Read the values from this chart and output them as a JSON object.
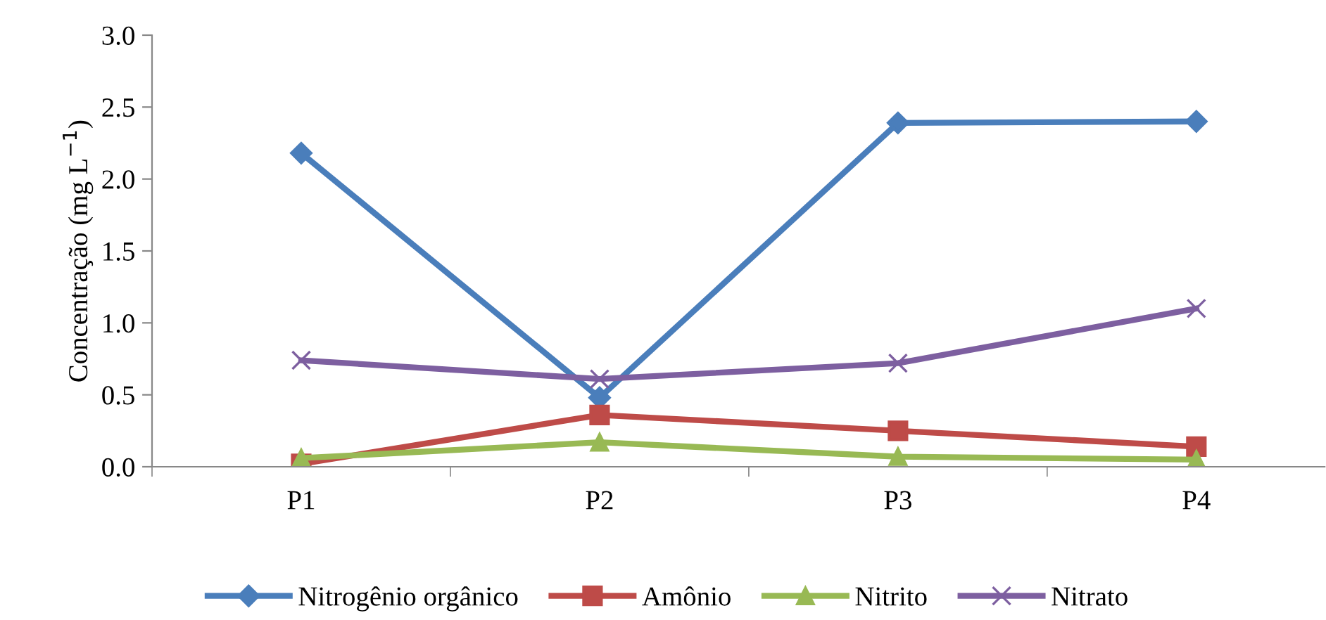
{
  "chart_data": {
    "type": "line",
    "ylabel": "Concentração (mg L$^{−1}$)",
    "categories": [
      "P1",
      "P2",
      "P3",
      "P4"
    ],
    "series": [
      {
        "name": "Nitrogênio orgânico",
        "color": "#4a7ebb",
        "marker": "diamond",
        "values": [
          2.18,
          0.48,
          2.39,
          2.4
        ]
      },
      {
        "name": "Amônio",
        "color": "#be4b48",
        "marker": "square",
        "values": [
          0.02,
          0.36,
          0.25,
          0.14
        ]
      },
      {
        "name": "Nitrito",
        "color": "#98b954",
        "marker": "triangle",
        "values": [
          0.06,
          0.17,
          0.07,
          0.05
        ]
      },
      {
        "name": "Nitrato",
        "color": "#7d5fa0",
        "marker": "cross",
        "values": [
          0.74,
          0.61,
          0.72,
          1.1
        ]
      }
    ],
    "ylim": [
      0,
      3
    ],
    "yticks": [
      {
        "value": 0,
        "label": "0.0"
      },
      0.5,
      {
        "value": 1,
        "label": "1.0"
      },
      1.5,
      {
        "value": 2,
        "label": "2.0"
      },
      2.5,
      {
        "value": 3,
        "label": "3.0"
      }
    ],
    "grid": false,
    "legend": "bottom",
    "line_style": "solid"
  }
}
